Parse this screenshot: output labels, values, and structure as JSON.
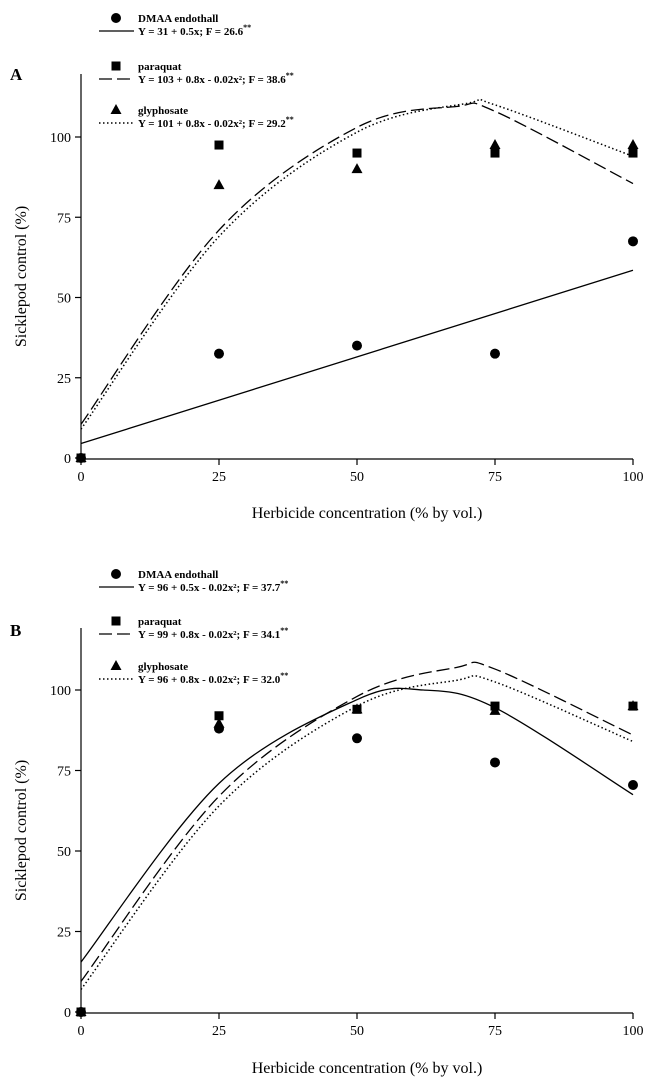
{
  "panels": [
    {
      "letter": "A",
      "legend": [
        {
          "label": "DMAA endothall",
          "equation": "Y = 31 + 0.5x; F = 26.6",
          "sig": "**"
        },
        {
          "label": "paraquat",
          "equation": "Y = 103 + 0.8x - 0.02x²; F = 38.6",
          "sig": "**"
        },
        {
          "label": "glyphosate",
          "equation": "Y = 101 + 0.8x - 0.02x²; F = 29.2",
          "sig": "**"
        }
      ]
    },
    {
      "letter": "B",
      "legend": [
        {
          "label": "DMAA endothall",
          "equation": "Y = 96 + 0.5x - 0.02x²; F = 37.7",
          "sig": "**"
        },
        {
          "label": "paraquat",
          "equation": "Y = 99 + 0.8x - 0.02x²; F = 34.1",
          "sig": "**"
        },
        {
          "label": "glyphosate",
          "equation": "Y = 96 + 0.8x - 0.02x²; F = 32.0",
          "sig": "**"
        }
      ]
    }
  ],
  "chart_data": [
    {
      "type": "scatter",
      "panel": "A",
      "xlabel": "Herbicide concentration (% by vol.)",
      "ylabel": "Sicklepod control (%)",
      "x_ticks": [
        0,
        25,
        50,
        75,
        100
      ],
      "y_ticks": [
        0,
        25,
        50,
        75,
        100
      ],
      "xlim": [
        0,
        100
      ],
      "ylim": [
        0,
        118
      ],
      "series": [
        {
          "name": "DMAA endothall",
          "marker": "circle",
          "points": [
            [
              0,
              0
            ],
            [
              25,
              32.5
            ],
            [
              50,
              35
            ],
            [
              75,
              32.5
            ],
            [
              100,
              67.5
            ]
          ],
          "fit": {
            "style": "solid",
            "kind": "linear",
            "points": [
              [
                0,
                4.5
              ],
              [
                100,
                58.5
              ]
            ]
          }
        },
        {
          "name": "paraquat",
          "marker": "square",
          "points": [
            [
              0,
              0
            ],
            [
              25,
              97.5
            ],
            [
              50,
              95
            ],
            [
              75,
              95
            ],
            [
              100,
              95
            ]
          ],
          "fit": {
            "style": "dashed",
            "kind": "quadratic",
            "points": [
              [
                0,
                10.5
              ],
              [
                25,
                71
              ],
              [
                50,
                103
              ],
              [
                68,
                109.5
              ],
              [
                75,
                108
              ],
              [
                100,
                85.5
              ]
            ]
          }
        },
        {
          "name": "glyphosate",
          "marker": "triangle",
          "points": [
            [
              0,
              0
            ],
            [
              25,
              85
            ],
            [
              50,
              90
            ],
            [
              75,
              97.5
            ],
            [
              100,
              97.5
            ]
          ],
          "fit": {
            "style": "dotted",
            "kind": "quadratic",
            "points": [
              [
                0,
                9
              ],
              [
                25,
                69
              ],
              [
                50,
                101.5
              ],
              [
                70,
                110.5
              ],
              [
                75,
                110
              ],
              [
                100,
                94
              ]
            ]
          }
        }
      ]
    },
    {
      "type": "scatter",
      "panel": "B",
      "xlabel": "Herbicide concentration (% by vol.)",
      "ylabel": "Sicklepod control (%)",
      "x_ticks": [
        0,
        25,
        50,
        75,
        100
      ],
      "y_ticks": [
        0,
        25,
        50,
        75,
        100
      ],
      "xlim": [
        0,
        100
      ],
      "ylim": [
        0,
        118
      ],
      "series": [
        {
          "name": "DMAA endothall",
          "marker": "circle",
          "points": [
            [
              0,
              0
            ],
            [
              25,
              88
            ],
            [
              50,
              85
            ],
            [
              75,
              77.5
            ],
            [
              100,
              70.5
            ]
          ],
          "fit": {
            "style": "solid",
            "kind": "quadratic",
            "points": [
              [
                0,
                15.5
              ],
              [
                25,
                71
              ],
              [
                50,
                97
              ],
              [
                62,
                100
              ],
              [
                75,
                94.5
              ],
              [
                100,
                67.5
              ]
            ]
          }
        },
        {
          "name": "paraquat",
          "marker": "square",
          "points": [
            [
              0,
              0
            ],
            [
              25,
              92
            ],
            [
              50,
              94
            ],
            [
              75,
              95
            ],
            [
              100,
              95
            ]
          ],
          "fit": {
            "style": "dashed",
            "kind": "quadratic",
            "points": [
              [
                0,
                9.5
              ],
              [
                25,
                67
              ],
              [
                50,
                98
              ],
              [
                68,
                107
              ],
              [
                75,
                106.5
              ],
              [
                100,
                86
              ]
            ]
          }
        },
        {
          "name": "glyphosate",
          "marker": "triangle",
          "points": [
            [
              0,
              0
            ],
            [
              25,
              89.5
            ],
            [
              50,
              94
            ],
            [
              75,
              93.5
            ],
            [
              100,
              95
            ]
          ],
          "fit": {
            "style": "dotted",
            "kind": "quadratic",
            "points": [
              [
                0,
                7
              ],
              [
                25,
                64
              ],
              [
                50,
                95
              ],
              [
                68,
                103
              ],
              [
                75,
                102.5
              ],
              [
                100,
                84
              ]
            ]
          }
        }
      ]
    }
  ]
}
